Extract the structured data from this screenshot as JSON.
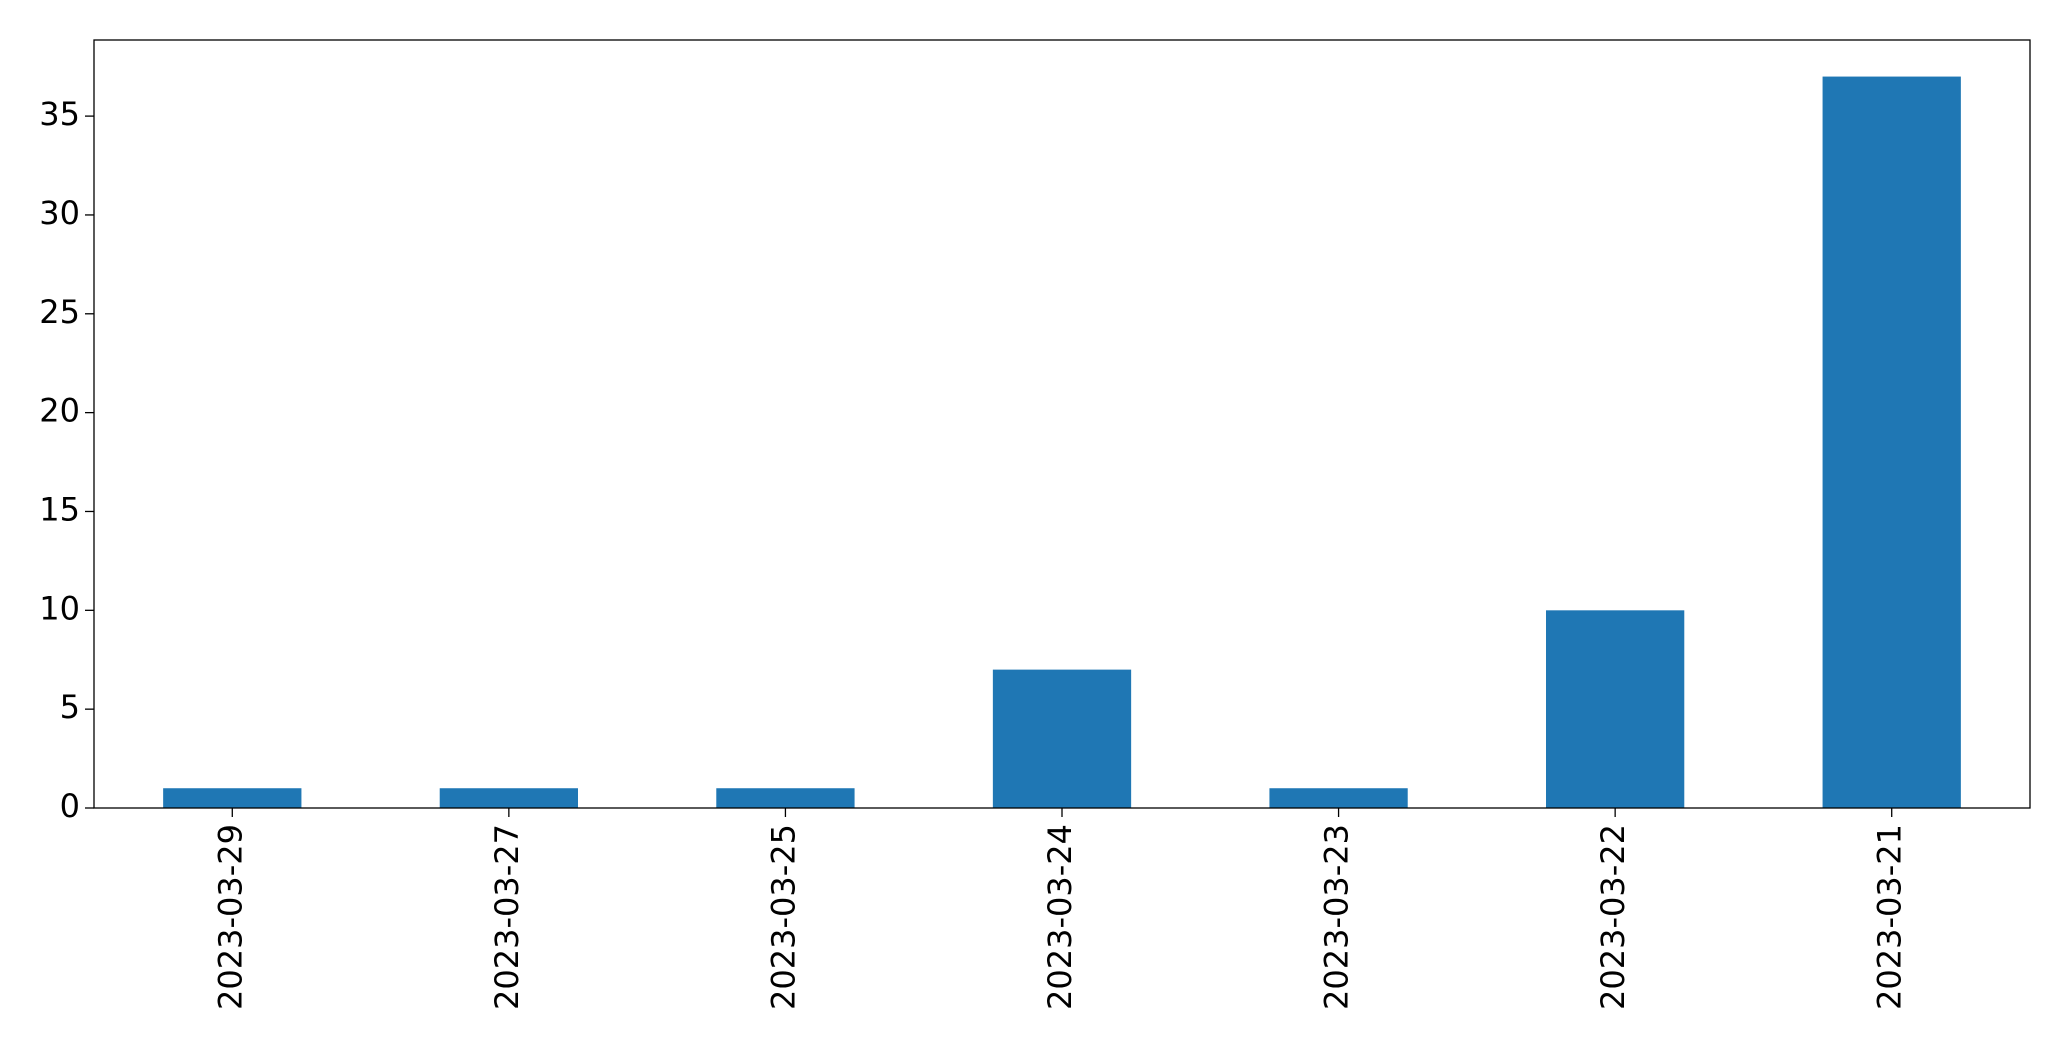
{
  "chart_data": {
    "type": "bar",
    "categories": [
      "2023-03-29",
      "2023-03-27",
      "2023-03-25",
      "2023-03-24",
      "2023-03-23",
      "2023-03-22",
      "2023-03-21"
    ],
    "values": [
      1,
      1,
      1,
      7,
      1,
      10,
      37
    ],
    "color": "#1f77b4",
    "ylim": [
      0,
      38.85
    ],
    "yticks": [
      0,
      5,
      10,
      15,
      20,
      25,
      30,
      35
    ],
    "grid": false
  }
}
